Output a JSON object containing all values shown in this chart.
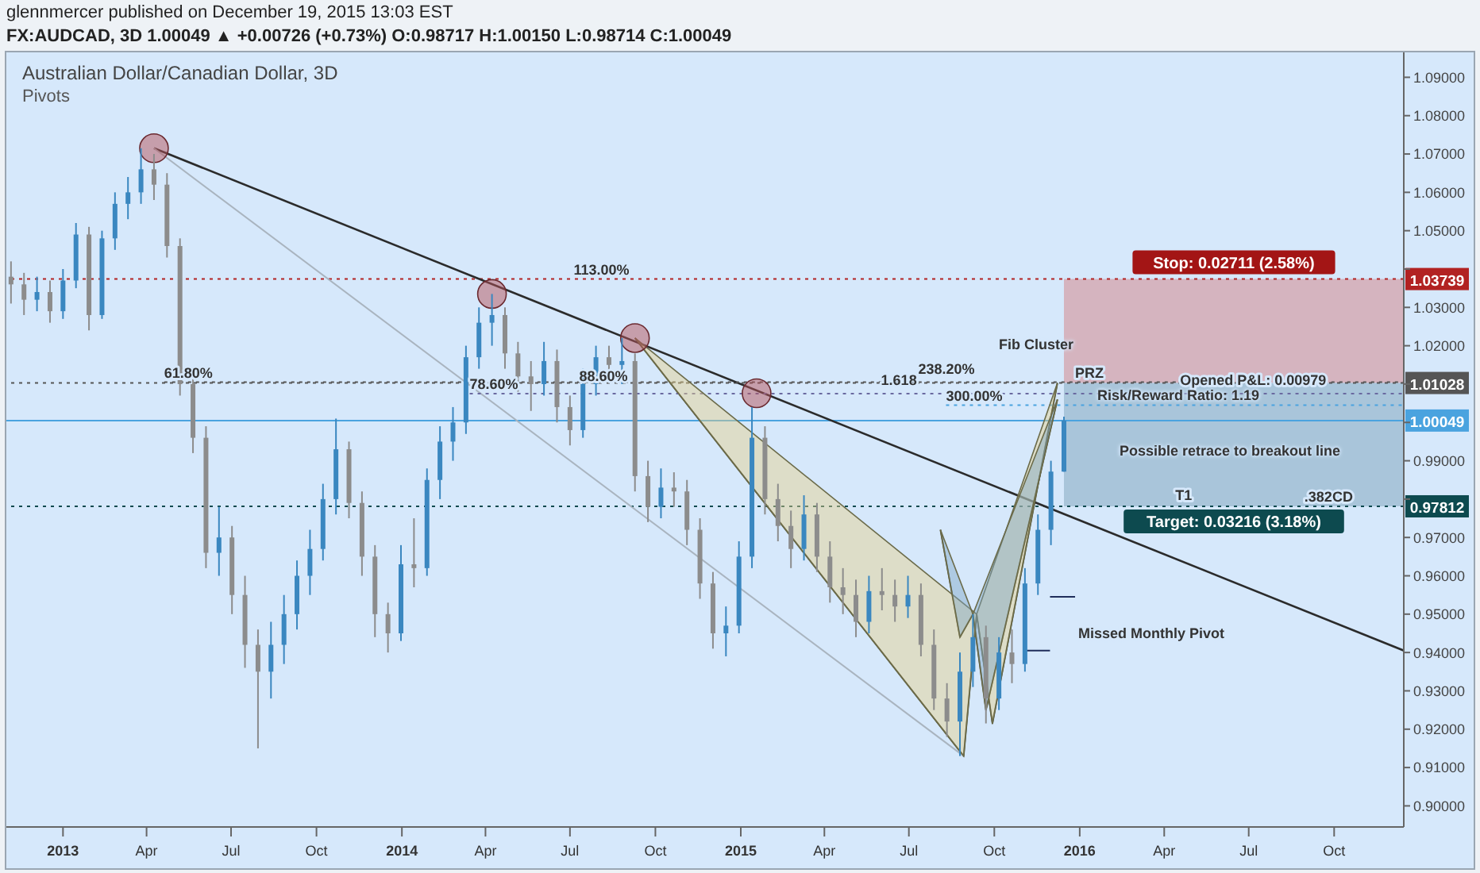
{
  "chart_data": {
    "type": "candlestick",
    "title": "Australian Dollar/Canadian Dollar, 3D",
    "subtitle": "Pivots",
    "x": [
      "2012-11-06",
      "2012-11-20",
      "2012-12-04",
      "2012-12-18",
      "2013-01-01",
      "2013-01-15",
      "2013-01-29",
      "2013-02-12",
      "2013-02-26",
      "2013-03-12",
      "2013-03-26",
      "2013-04-09",
      "2013-04-23",
      "2013-05-07",
      "2013-05-21",
      "2013-06-04",
      "2013-06-18",
      "2013-07-02",
      "2013-07-16",
      "2013-07-30",
      "2013-08-13",
      "2013-08-27",
      "2013-09-10",
      "2013-09-24",
      "2013-10-08",
      "2013-10-22",
      "2013-11-05",
      "2013-11-19",
      "2013-12-03",
      "2013-12-17",
      "2013-12-31",
      "2014-01-14",
      "2014-01-28",
      "2014-02-11",
      "2014-02-25",
      "2014-03-11",
      "2014-03-25",
      "2014-04-08",
      "2014-04-22",
      "2014-05-06",
      "2014-05-20",
      "2014-06-03",
      "2014-06-17",
      "2014-07-01",
      "2014-07-15",
      "2014-07-29",
      "2014-08-12",
      "2014-08-26",
      "2014-09-09",
      "2014-09-23",
      "2014-10-07",
      "2014-10-21",
      "2014-11-04",
      "2014-11-18",
      "2014-12-02",
      "2014-12-16",
      "2014-12-30",
      "2015-01-13",
      "2015-01-27",
      "2015-02-10",
      "2015-02-24",
      "2015-03-10",
      "2015-03-24",
      "2015-04-07",
      "2015-04-21",
      "2015-05-05",
      "2015-05-19",
      "2015-06-02",
      "2015-06-16",
      "2015-06-30",
      "2015-07-14",
      "2015-07-28",
      "2015-08-11",
      "2015-08-25",
      "2015-09-08",
      "2015-09-22",
      "2015-10-06",
      "2015-10-20",
      "2015-11-03",
      "2015-11-17",
      "2015-12-01",
      "2015-12-15"
    ],
    "ohlc": [
      [
        1.038,
        1.042,
        1.031,
        1.036
      ],
      [
        1.036,
        1.039,
        1.028,
        1.032
      ],
      [
        1.032,
        1.038,
        1.029,
        1.034
      ],
      [
        1.034,
        1.037,
        1.026,
        1.029
      ],
      [
        1.029,
        1.04,
        1.027,
        1.037
      ],
      [
        1.037,
        1.052,
        1.035,
        1.049
      ],
      [
        1.049,
        1.051,
        1.024,
        1.028
      ],
      [
        1.028,
        1.05,
        1.027,
        1.048
      ],
      [
        1.048,
        1.06,
        1.045,
        1.057
      ],
      [
        1.057,
        1.064,
        1.053,
        1.06
      ],
      [
        1.06,
        1.0715,
        1.057,
        1.066
      ],
      [
        1.066,
        1.07,
        1.058,
        1.062
      ],
      [
        1.062,
        1.065,
        1.043,
        1.046
      ],
      [
        1.046,
        1.048,
        1.007,
        1.01
      ],
      [
        1.01,
        1.014,
        0.992,
        0.996
      ],
      [
        0.996,
        0.999,
        0.962,
        0.966
      ],
      [
        0.966,
        0.978,
        0.96,
        0.97
      ],
      [
        0.97,
        0.973,
        0.95,
        0.955
      ],
      [
        0.955,
        0.96,
        0.936,
        0.942
      ],
      [
        0.942,
        0.946,
        0.915,
        0.935
      ],
      [
        0.935,
        0.948,
        0.928,
        0.942
      ],
      [
        0.942,
        0.955,
        0.937,
        0.95
      ],
      [
        0.95,
        0.964,
        0.946,
        0.96
      ],
      [
        0.96,
        0.972,
        0.955,
        0.967
      ],
      [
        0.967,
        0.984,
        0.964,
        0.98
      ],
      [
        0.98,
        1.001,
        0.976,
        0.993
      ],
      [
        0.993,
        0.995,
        0.975,
        0.979
      ],
      [
        0.979,
        0.982,
        0.96,
        0.965
      ],
      [
        0.965,
        0.968,
        0.944,
        0.95
      ],
      [
        0.95,
        0.953,
        0.94,
        0.945
      ],
      [
        0.945,
        0.968,
        0.943,
        0.963
      ],
      [
        0.963,
        0.975,
        0.957,
        0.962
      ],
      [
        0.962,
        0.988,
        0.96,
        0.985
      ],
      [
        0.985,
        0.999,
        0.98,
        0.995
      ],
      [
        0.995,
        1.004,
        0.99,
        1.0
      ],
      [
        1.0,
        1.02,
        0.997,
        1.017
      ],
      [
        1.017,
        1.03,
        1.014,
        1.026
      ],
      [
        1.026,
        1.0335,
        1.02,
        1.028
      ],
      [
        1.028,
        1.03,
        1.014,
        1.018
      ],
      [
        1.018,
        1.021,
        1.008,
        1.012
      ],
      [
        1.012,
        1.016,
        1.003,
        1.01
      ],
      [
        1.01,
        1.021,
        1.007,
        1.016
      ],
      [
        1.016,
        1.019,
        1.0,
        1.004
      ],
      [
        1.004,
        1.007,
        0.994,
        0.998
      ],
      [
        0.998,
        1.014,
        0.996,
        1.01
      ],
      [
        1.01,
        1.02,
        1.007,
        1.017
      ],
      [
        1.017,
        1.02,
        1.011,
        1.015
      ],
      [
        1.015,
        1.022,
        1.01,
        1.016
      ],
      [
        1.016,
        1.018,
        0.982,
        0.986
      ],
      [
        0.986,
        0.99,
        0.974,
        0.978
      ],
      [
        0.978,
        0.988,
        0.975,
        0.983
      ],
      [
        0.983,
        0.987,
        0.978,
        0.982
      ],
      [
        0.982,
        0.985,
        0.968,
        0.972
      ],
      [
        0.972,
        0.975,
        0.954,
        0.958
      ],
      [
        0.958,
        0.961,
        0.941,
        0.945
      ],
      [
        0.945,
        0.952,
        0.939,
        0.947
      ],
      [
        0.947,
        0.969,
        0.945,
        0.965
      ],
      [
        0.965,
        1.004,
        0.962,
        0.996
      ],
      [
        0.996,
        0.999,
        0.976,
        0.98
      ],
      [
        0.98,
        0.984,
        0.969,
        0.973
      ],
      [
        0.973,
        0.977,
        0.962,
        0.967
      ],
      [
        0.967,
        0.981,
        0.964,
        0.976
      ],
      [
        0.976,
        0.979,
        0.961,
        0.965
      ],
      [
        0.965,
        0.969,
        0.953,
        0.957
      ],
      [
        0.957,
        0.962,
        0.95,
        0.955
      ],
      [
        0.955,
        0.959,
        0.944,
        0.948
      ],
      [
        0.948,
        0.96,
        0.945,
        0.956
      ],
      [
        0.956,
        0.962,
        0.951,
        0.955
      ],
      [
        0.955,
        0.959,
        0.948,
        0.952
      ],
      [
        0.952,
        0.96,
        0.949,
        0.955
      ],
      [
        0.955,
        0.958,
        0.939,
        0.942
      ],
      [
        0.942,
        0.946,
        0.925,
        0.928
      ],
      [
        0.928,
        0.932,
        0.918,
        0.922
      ],
      [
        0.922,
        0.94,
        0.913,
        0.935
      ],
      [
        0.935,
        0.95,
        0.931,
        0.944
      ],
      [
        0.944,
        0.947,
        0.9215,
        0.928
      ],
      [
        0.928,
        0.944,
        0.925,
        0.94
      ],
      [
        0.94,
        0.946,
        0.932,
        0.937
      ],
      [
        0.937,
        0.962,
        0.935,
        0.958
      ],
      [
        0.958,
        0.976,
        0.955,
        0.972
      ],
      [
        0.972,
        0.99,
        0.968,
        0.98717
      ],
      [
        0.98717,
        1.0015,
        0.98714,
        1.00049
      ]
    ],
    "series": [
      {
        "type": "area",
        "x": [
          "2014-09-09",
          "2015-08-29",
          "2015-09-12",
          "2015-09-29",
          "2015-12-08"
        ],
        "values": [
          1.022,
          0.913,
          0.95,
          0.9215,
          1.0103
        ],
        "color": "#e6d08a"
      },
      {
        "type": "area",
        "x": [
          "2015-08-04",
          "2015-08-25",
          "2015-09-08",
          "2015-09-22",
          "2015-12-08"
        ],
        "values": [
          0.972,
          0.944,
          0.95,
          0.925,
          1.006
        ],
        "color": "#7fa7c4"
      },
      {
        "type": "line",
        "x": [
          "2013-04-09",
          "2016-12-15"
        ],
        "values": [
          1.0715,
          0.9405
        ],
        "color": "#2b2b2b",
        "line_style": "solid"
      },
      {
        "type": "line",
        "x": [
          "2013-04-09",
          "2015-08-29"
        ],
        "values": [
          1.0715,
          0.913
        ],
        "color": "#a9b4bf",
        "line_style": "solid"
      },
      {
        "type": "line",
        "x": [
          "2015-11-30",
          "2015-12-27"
        ],
        "values": [
          0.9545,
          0.9545
        ],
        "color": "#1f2d5a",
        "line_style": "solid"
      },
      {
        "type": "line",
        "x": [
          "2015-11-01",
          "2015-11-30"
        ],
        "values": [
          0.9405,
          0.9405
        ],
        "color": "#1f2d5a",
        "line_style": "solid"
      },
      {
        "type": "line",
        "x": [
          "2013-04-20",
          "2016-12-15"
        ],
        "values": [
          1.0105,
          1.0105
        ],
        "color": "#555555",
        "line_style": "dotted"
      },
      {
        "type": "line",
        "x": [
          "2014-03-15",
          "2016-12-15"
        ],
        "values": [
          1.0075,
          1.0075
        ],
        "color": "#6a6aa0",
        "line_style": "dotted"
      },
      {
        "type": "line",
        "x": [
          "2015-08-10",
          "2016-12-15"
        ],
        "values": [
          1.0045,
          1.0045
        ],
        "color": "#4aa3df",
        "line_style": "dotted"
      },
      {
        "type": "scatter",
        "x": [
          "2013-04-09",
          "2014-04-08",
          "2014-09-09",
          "2015-01-18"
        ],
        "values": [
          1.0715,
          1.0335,
          1.022,
          1.0076
        ],
        "color": "#b5545c",
        "marker": "circle"
      }
    ],
    "xlim": [
      "2012-11-01",
      "2016-12-15"
    ],
    "xticks": [
      {
        "value": "2013-01-01",
        "label": "2013"
      },
      {
        "value": "2013-04-01",
        "label": "Apr"
      },
      {
        "value": "2013-07-01",
        "label": "Jul"
      },
      {
        "value": "2013-10-01",
        "label": "Oct"
      },
      {
        "value": "2014-01-01",
        "label": "2014"
      },
      {
        "value": "2014-04-01",
        "label": "Apr"
      },
      {
        "value": "2014-07-01",
        "label": "Jul"
      },
      {
        "value": "2014-10-01",
        "label": "Oct"
      },
      {
        "value": "2015-01-01",
        "label": "2015"
      },
      {
        "value": "2015-04-01",
        "label": "Apr"
      },
      {
        "value": "2015-07-01",
        "label": "Jul"
      },
      {
        "value": "2015-10-01",
        "label": "Oct"
      },
      {
        "value": "2016-01-01",
        "label": "2016"
      },
      {
        "value": "2016-04-01",
        "label": "Apr"
      },
      {
        "value": "2016-07-01",
        "label": "Jul"
      },
      {
        "value": "2016-10-01",
        "label": "Oct"
      }
    ],
    "ylim": [
      0.8945,
      1.0965
    ],
    "yticks": [
      {
        "value": 0.9,
        "label": "0.90000"
      },
      {
        "value": 0.91,
        "label": "0.91000"
      },
      {
        "value": 0.92,
        "label": "0.92000"
      },
      {
        "value": 0.93,
        "label": "0.93000"
      },
      {
        "value": 0.94,
        "label": "0.94000"
      },
      {
        "value": 0.95,
        "label": "0.95000"
      },
      {
        "value": 0.96,
        "label": "0.96000"
      },
      {
        "value": 0.97,
        "label": "0.97000"
      },
      {
        "value": 0.98,
        "label": null
      },
      {
        "value": 0.99,
        "label": "0.99000"
      },
      {
        "value": 1.0,
        "label": null
      },
      {
        "value": 1.01,
        "label": null
      },
      {
        "value": 1.02,
        "label": "1.02000"
      },
      {
        "value": 1.03,
        "label": "1.03000"
      },
      {
        "value": 1.04,
        "label": null
      },
      {
        "value": 1.05,
        "label": "1.05000"
      },
      {
        "value": 1.06,
        "label": "1.06000"
      },
      {
        "value": 1.07,
        "label": "1.07000"
      },
      {
        "value": 1.08,
        "label": "1.08000"
      },
      {
        "value": 1.09,
        "label": "1.09000"
      }
    ],
    "ref_lines": [
      {
        "axis": "y",
        "value": 1.03739,
        "label": "1.03739",
        "color": "#b22222",
        "line_style": "dotted"
      },
      {
        "axis": "y",
        "value": 1.01028,
        "label": "1.01028",
        "color": "#555555",
        "line_style": "dotted"
      },
      {
        "axis": "y",
        "value": 1.00049,
        "label": "1.00049",
        "color": "#4aa3df",
        "line_style": "solid"
      },
      {
        "axis": "y",
        "value": 0.97812,
        "label": "0.97812",
        "color": "#0d4a4f",
        "line_style": "dotted"
      }
    ],
    "bands": [
      {
        "axis": "y",
        "from": 1.01028,
        "to": 1.03739,
        "label": "Stop: 0.02711 (2.58%)",
        "color": "#d5a6b0"
      },
      {
        "axis": "y",
        "from": 0.97812,
        "to": 1.01028,
        "label": "Target: 0.03216 (3.18%)",
        "color": "#9dbcd2"
      }
    ],
    "annotations": [
      "glennmercer published on December 19, 2015 13:03 EST",
      "FX:AUDCAD, 3D 1.00049 ▲ +0.00726 (+0.73%) O:0.98717 H:1.00150 L:0.98714 C:1.00049",
      "Fib Cluster",
      "Risk/Reward Ratio: 1.19",
      "Possible retrace to breakout line",
      "Missed Monthly Pivot",
      {
        "text": "113.00%",
        "x": "2014-07-05",
        "y": 1.0374
      },
      {
        "text": "61.80%",
        "x": "2013-04-20",
        "y": 1.0105
      },
      {
        "text": "78.60%",
        "x": "2014-03-15",
        "y": 1.0075
      },
      {
        "text": "88.60%",
        "x": "2014-07-11",
        "y": 1.0095
      },
      {
        "text": "238.20%",
        "x": "2015-07-11",
        "y": 1.0115
      },
      {
        "text": "1.618",
        "x": "2015-06-01",
        "y": 1.0085
      },
      {
        "text": "300.00%",
        "x": "2015-08-10",
        "y": 1.0045
      },
      {
        "text": "PRZ",
        "x": "2015-12-27",
        "y": 1.0105
      },
      {
        "text": "Opened P&L: 0.00979",
        "x": "2016-04-18",
        "y": 1.0085
      },
      {
        "text": "T1",
        "x": "2016-04-13",
        "y": 0.9785
      },
      {
        "text": ".382CD",
        "x": "2016-08-30",
        "y": 0.97812
      }
    ]
  }
}
